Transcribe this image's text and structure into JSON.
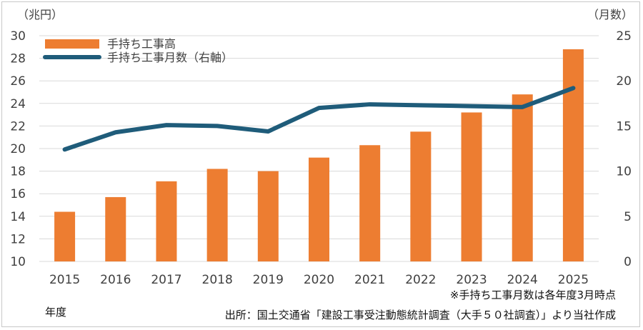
{
  "chart_data": {
    "type": "bar",
    "categories": [
      "2015",
      "2016",
      "2017",
      "2018",
      "2019",
      "2020",
      "2021",
      "2022",
      "2023",
      "2024",
      "2025"
    ],
    "series": [
      {
        "name": "手持ち工事高",
        "type": "bar",
        "axis": "left",
        "color": "#ED7D31",
        "values": [
          14.4,
          15.7,
          17.1,
          18.2,
          18.0,
          19.2,
          20.3,
          21.5,
          23.2,
          24.8,
          28.8
        ]
      },
      {
        "name": "手持ち工事月数（右軸）",
        "type": "line",
        "axis": "right",
        "color": "#1F5C7A",
        "values": [
          12.4,
          14.3,
          15.1,
          15.0,
          14.4,
          17.0,
          17.4,
          17.3,
          17.2,
          17.1,
          19.2
        ]
      }
    ],
    "y_left": {
      "unit_label": "（兆円）",
      "ylim": [
        10,
        30
      ],
      "ticks": [
        "10",
        "12",
        "14",
        "16",
        "18",
        "20",
        "22",
        "24",
        "26",
        "28",
        "30"
      ]
    },
    "y_right": {
      "unit_label": "（月数）",
      "ylim": [
        0,
        25
      ],
      "ticks": [
        "0",
        "5",
        "10",
        "15",
        "20",
        "25"
      ]
    },
    "xlabel": "年度",
    "grid": true,
    "legend_position": "top-left",
    "notes": [
      "※手持ち工事月数は各年度3月時点",
      "出所：国土交通省「建設工事受注動態統計調査（大手５０社調査）」より当社作成"
    ]
  }
}
